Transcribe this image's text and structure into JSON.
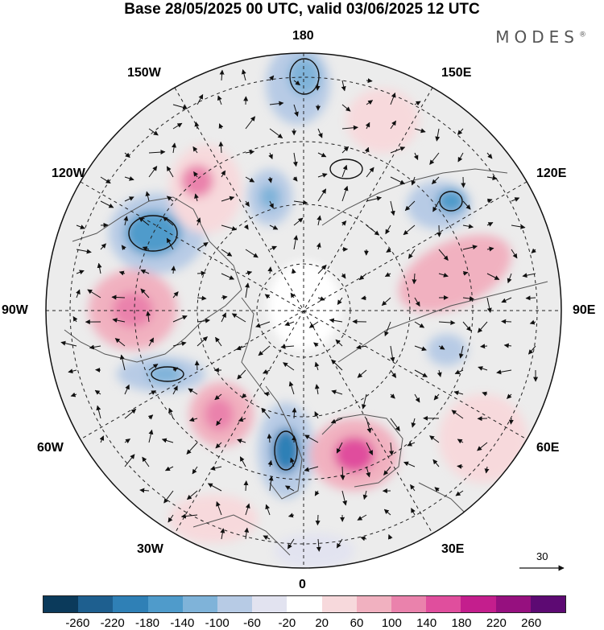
{
  "title": "Base 28/05/2025 00 UTC, valid 03/06/2025 12 UTC",
  "brand": "MODES",
  "brand_mark": "®",
  "lon_labels": {
    "top": "180",
    "bottom": "0",
    "left": "90W",
    "right": "90E",
    "nw1": "150W",
    "nw2": "120W",
    "sw1": "60W",
    "sw2": "30W",
    "ne1": "150E",
    "ne2": "120E",
    "se1": "60E",
    "se2": "30E"
  },
  "vector_reference": "30",
  "colorbar": {
    "colors": [
      "#0b3a5b",
      "#1e5f8f",
      "#2f80b6",
      "#4f9bcb",
      "#7fb3d9",
      "#b7cbe5",
      "#e2e3f0",
      "#ffffff",
      "#f7d9dc",
      "#f1b1c0",
      "#ea82ac",
      "#e04e9d",
      "#c41e8d",
      "#96107f",
      "#5d0a73"
    ],
    "ticks": [
      "-260",
      "-220",
      "-180",
      "-140",
      "-100",
      "-60",
      "-20",
      "20",
      "60",
      "100",
      "140",
      "180",
      "220",
      "260"
    ]
  },
  "icons": {
    "vector_arrow": "arrow-icon"
  }
}
